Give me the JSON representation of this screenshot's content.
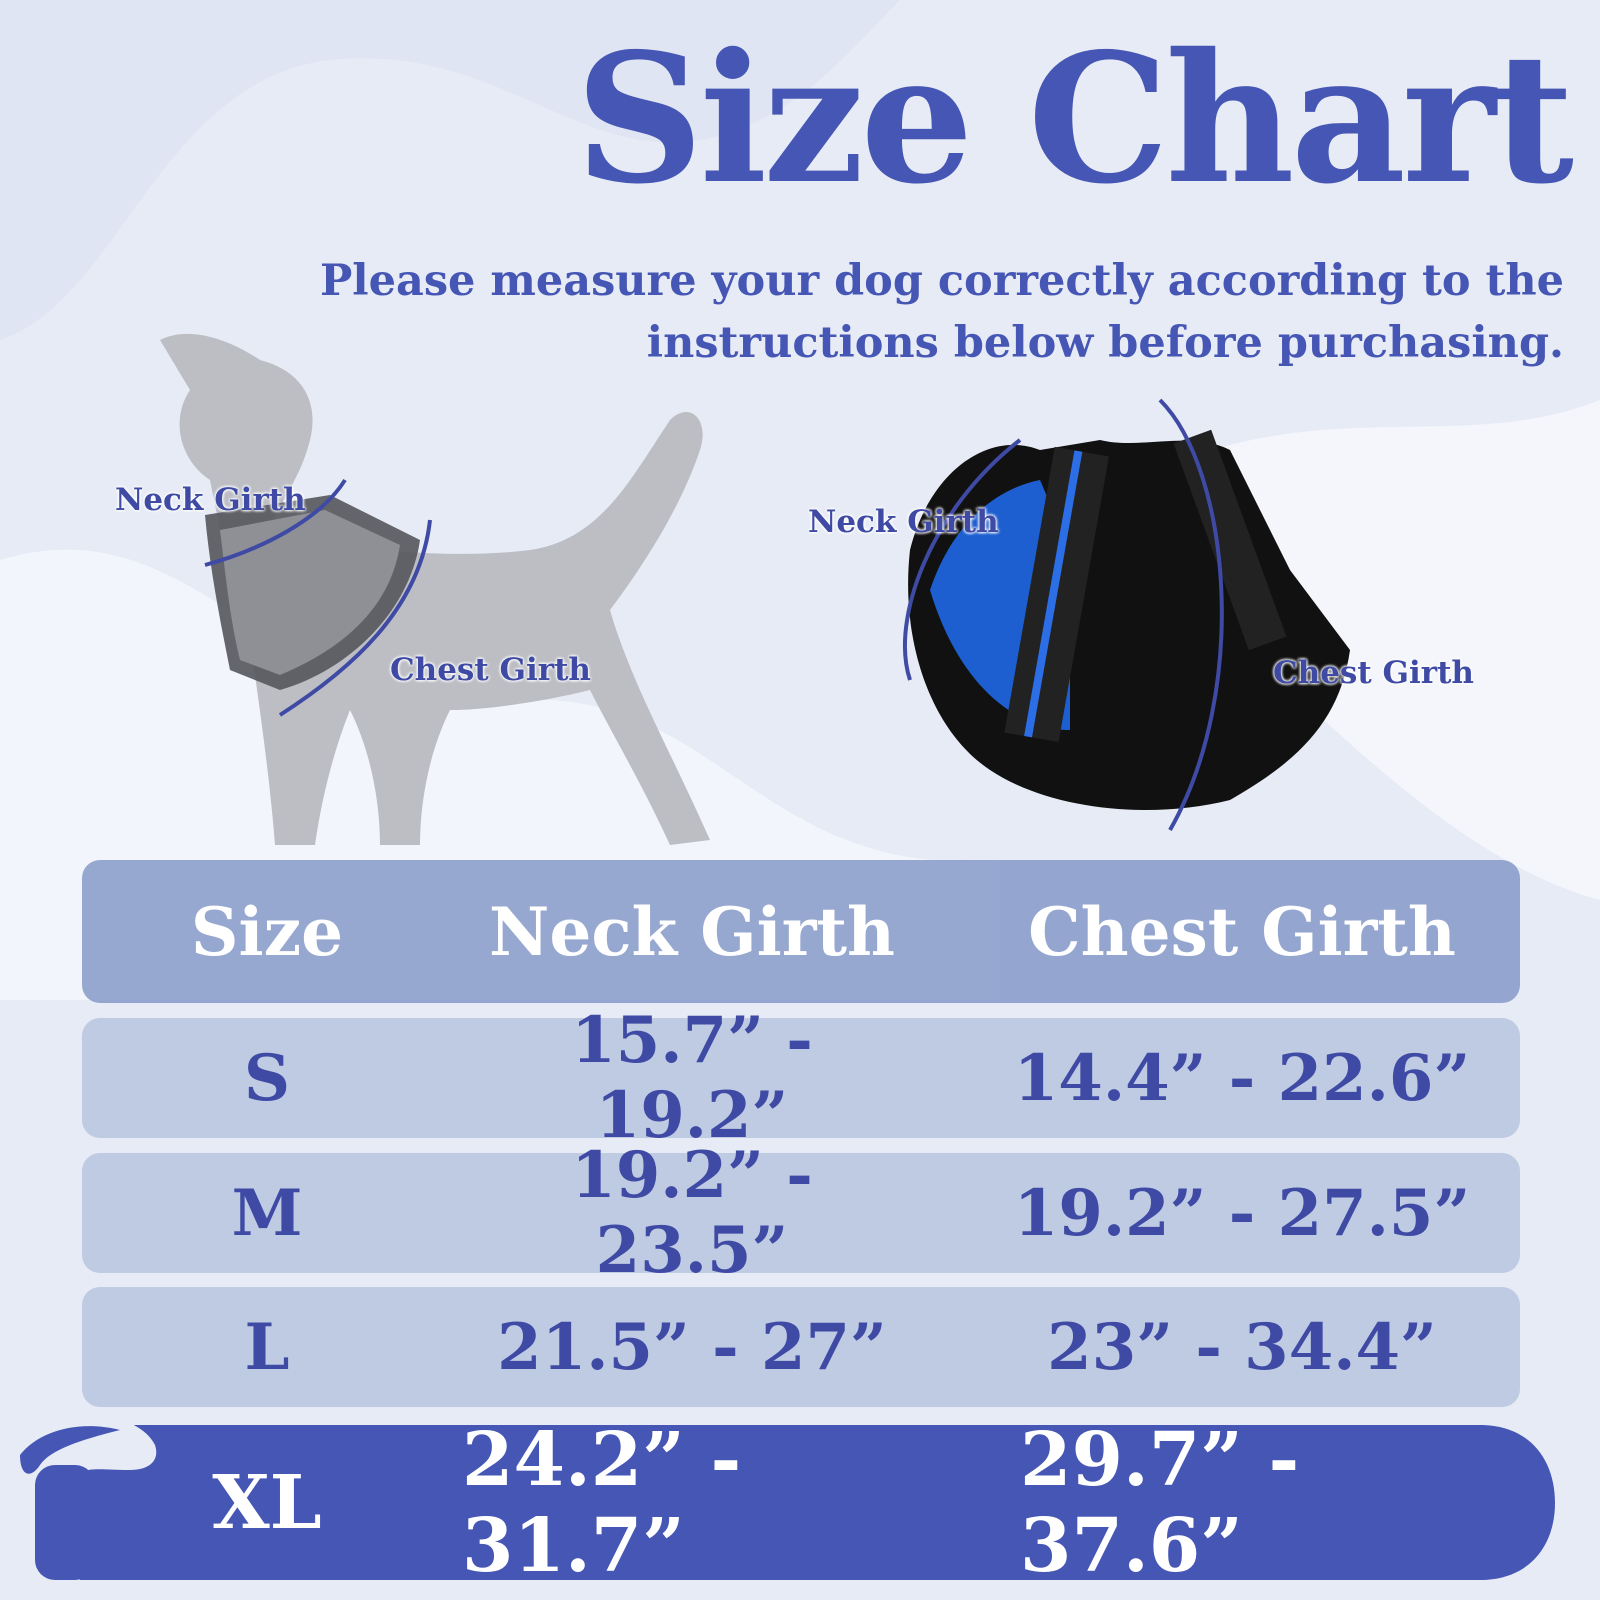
{
  "title": "Size Chart",
  "subtitle": [
    "Please measure your dog correctly according to the",
    "instructions below before purchasing."
  ],
  "dog_labels": {
    "neck": "Neck Girth",
    "chest": "Chest Girth"
  },
  "harness_labels": {
    "neck": "Neck Girth",
    "chest": "Chest Girth"
  },
  "colors": {
    "accent": "#4656b4",
    "row": "#bfcbe3",
    "header": "#8d9fcb",
    "background": "#e6ebf5"
  },
  "table": {
    "headers": [
      "Size",
      "Neck Girth",
      "Chest Girth"
    ],
    "rows": [
      {
        "size": "S",
        "neck": "15.7” - 19.2”",
        "chest": "14.4” - 22.6”"
      },
      {
        "size": "M",
        "neck": "19.2” - 23.5”",
        "chest": "19.2” - 27.5”"
      },
      {
        "size": "L",
        "neck": "21.5” - 27”",
        "chest": "23” - 34.4”"
      },
      {
        "size": "XL",
        "neck": "24.2” - 31.7”",
        "chest": "29.7” - 37.6”"
      }
    ]
  }
}
